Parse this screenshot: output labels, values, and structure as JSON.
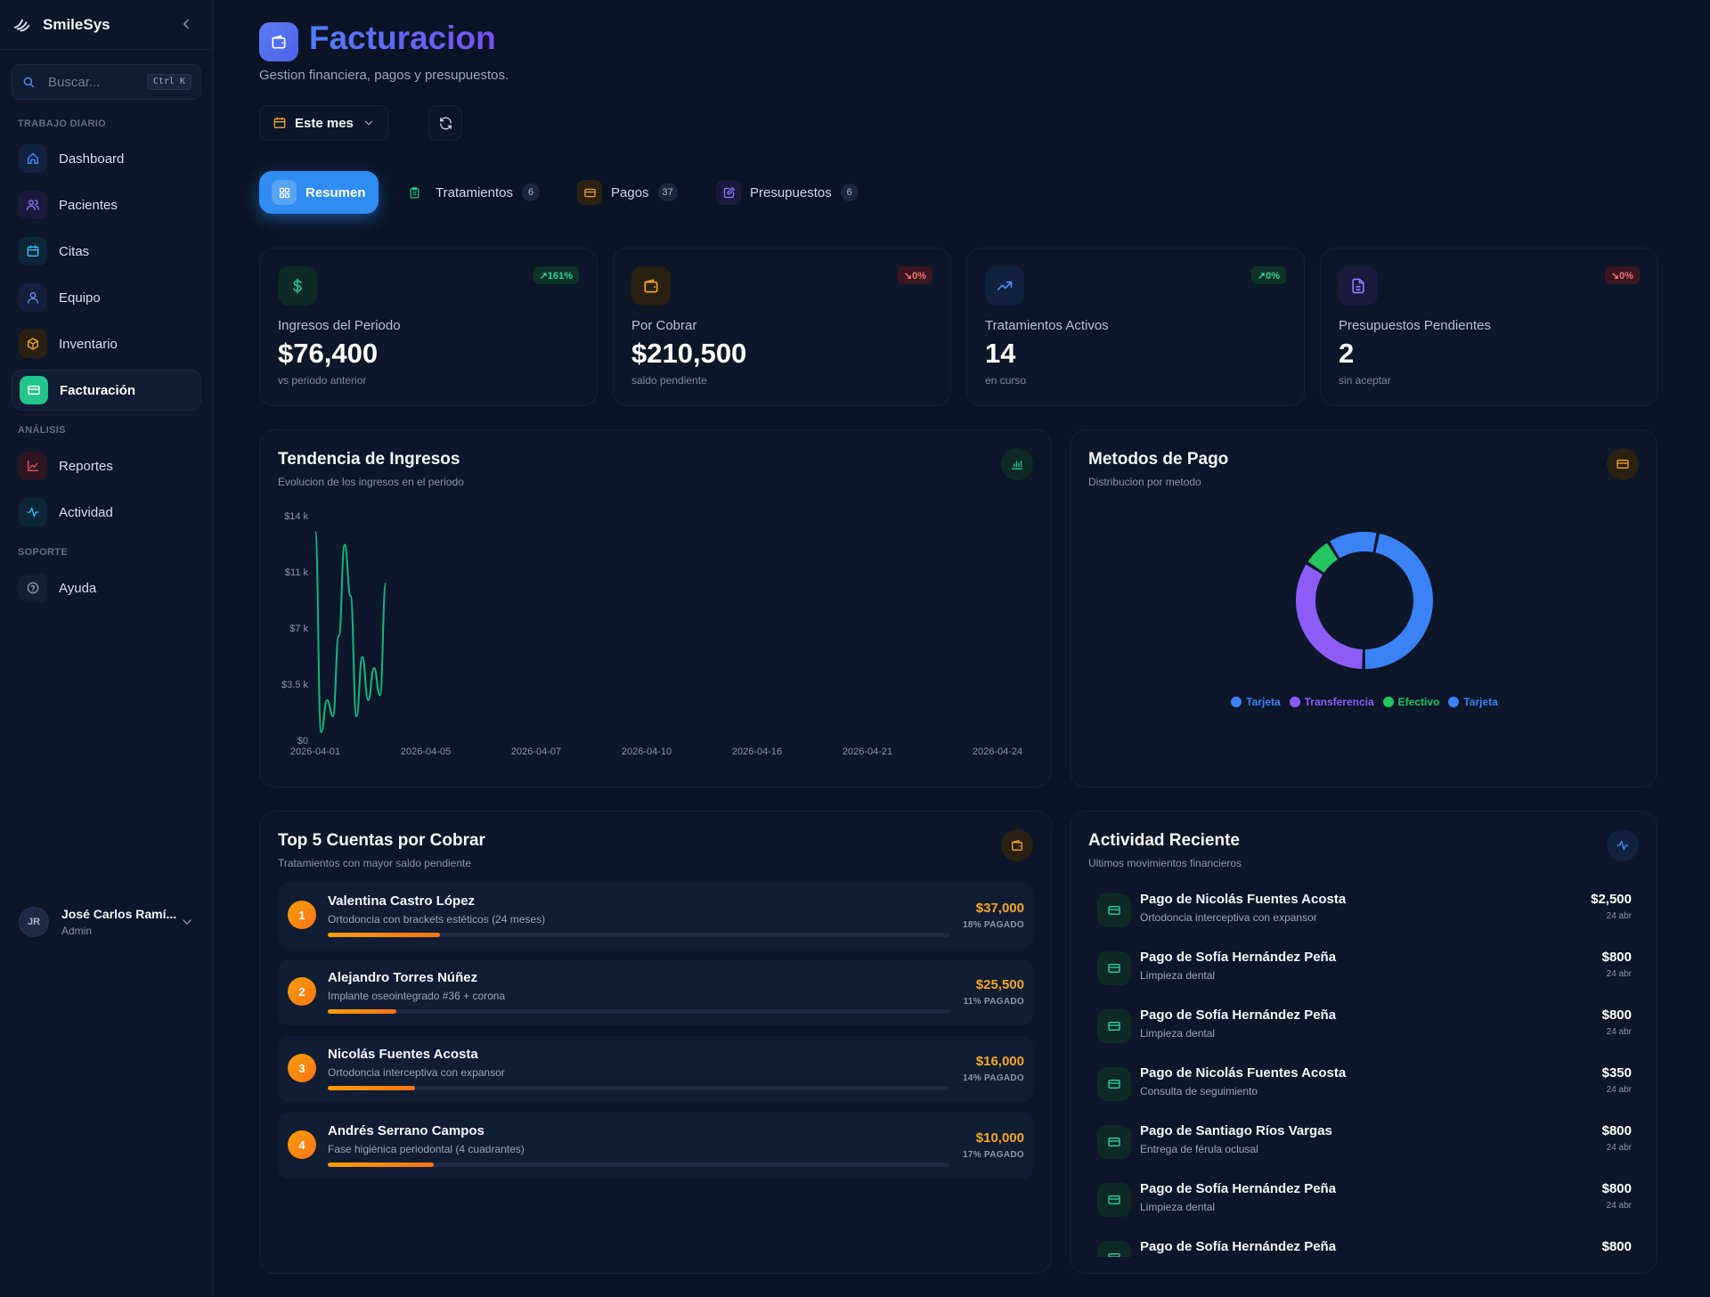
{
  "app": {
    "name": "SmileSys"
  },
  "search": {
    "placeholder": "Buscar...",
    "shortcut": "Ctrl K"
  },
  "sidebar": {
    "sections": [
      "TRABAJO DIARIO",
      "ANÁLISIS",
      "SOPORTE"
    ],
    "items": [
      {
        "label": "Dashboard",
        "icon": "home-icon",
        "color": "#4d8ef5"
      },
      {
        "label": "Pacientes",
        "icon": "users-icon",
        "color": "#8b7cf6"
      },
      {
        "label": "Citas",
        "icon": "calendar-icon",
        "color": "#38bdf8"
      },
      {
        "label": "Equipo",
        "icon": "team-icon",
        "color": "#6b8cf5"
      },
      {
        "label": "Inventario",
        "icon": "box-icon",
        "color": "#f0a230"
      },
      {
        "label": "Facturación",
        "icon": "card-icon",
        "color": "#22c58b"
      },
      {
        "label": "Reportes",
        "icon": "chart-line-icon",
        "color": "#f0506e"
      },
      {
        "label": "Actividad",
        "icon": "activity-icon",
        "color": "#38bdf8"
      },
      {
        "label": "Ayuda",
        "icon": "help-icon",
        "color": "#8a97ad"
      }
    ]
  },
  "user": {
    "initials": "JR",
    "name": "José Carlos Ramí...",
    "role": "Admin"
  },
  "header": {
    "title": "Facturacion",
    "subtitle": "Gestion financiera, pagos y presupuestos.",
    "period": "Este mes"
  },
  "tabs": [
    {
      "label": "Resumen",
      "count": null
    },
    {
      "label": "Tratamientos",
      "count": "6"
    },
    {
      "label": "Pagos",
      "count": "37"
    },
    {
      "label": "Presupuestos",
      "count": "6"
    }
  ],
  "stats": [
    {
      "label": "Ingresos del Periodo",
      "value": "$76,400",
      "note": "vs periodo anterior",
      "badge": "↗161%",
      "trend": "up"
    },
    {
      "label": "Por Cobrar",
      "value": "$210,500",
      "note": "saldo pendiente",
      "badge": "↘0%",
      "trend": "down"
    },
    {
      "label": "Tratamientos Activos",
      "value": "14",
      "note": "en curso",
      "badge": "↗0%",
      "trend": "up"
    },
    {
      "label": "Presupuestos Pendientes",
      "value": "2",
      "note": "sin aceptar",
      "badge": "↘0%",
      "trend": "down"
    }
  ],
  "income_panel": {
    "title": "Tendencia de Ingresos",
    "subtitle": "Evolucion de los ingresos en el periodo"
  },
  "methods_panel": {
    "title": "Metodos de Pago",
    "subtitle": "Distribucion por metodo"
  },
  "chart_data": [
    {
      "type": "line",
      "ytick_labels": [
        "$0",
        "$3.5 k",
        "$7 k",
        "$11 k",
        "$14 k"
      ],
      "ytick_values": [
        0,
        3500,
        7000,
        10500,
        14000
      ],
      "xtick_labels": [
        "2026-04-01",
        "2026-04-05",
        "2026-04-07",
        "2026-04-10",
        "2026-04-16",
        "2026-04-21",
        "2026-04-24"
      ],
      "ylim": [
        0,
        14000
      ],
      "color": "#10b981",
      "x": [
        "2026-04-01",
        "2026-04-02",
        "2026-04-03",
        "2026-04-04",
        "2026-04-05",
        "2026-04-06",
        "2026-04-07",
        "2026-04-08",
        "2026-04-09",
        "2026-04-10",
        "2026-04-11",
        "2026-04-12",
        "2026-04-13"
      ],
      "values": [
        13000,
        500,
        2500,
        1500,
        6500,
        12200,
        9000,
        1500,
        5200,
        2500,
        4500,
        2800,
        9800
      ],
      "grid": false
    },
    {
      "type": "pie",
      "donut": true,
      "labels": [
        "Tarjeta",
        "Transferencia",
        "Efectivo",
        "Tarjeta"
      ],
      "values": [
        47,
        34,
        7,
        12
      ],
      "colors": [
        "#3b82f6",
        "#8b5cf6",
        "#22c55e",
        "#3b82f6"
      ],
      "legend": "bottom"
    }
  ],
  "accounts_panel": {
    "title": "Top 5 Cuentas por Cobrar",
    "subtitle": "Tratamientos con mayor saldo pendiente",
    "items": [
      {
        "rank": "1",
        "name": "Valentina Castro López",
        "desc": "Ortodoncia con brackets estéticos (24 meses)",
        "amount": "$37,000",
        "pct_label": "18% PAGADO",
        "paid": 0.18
      },
      {
        "rank": "2",
        "name": "Alejandro Torres Núñez",
        "desc": "Implante oseointegrado #36 + corona",
        "amount": "$25,500",
        "pct_label": "11% PAGADO",
        "paid": 0.11
      },
      {
        "rank": "3",
        "name": "Nicolás Fuentes Acosta",
        "desc": "Ortodoncia interceptiva con expansor",
        "amount": "$16,000",
        "pct_label": "14% PAGADO",
        "paid": 0.14
      },
      {
        "rank": "4",
        "name": "Andrés Serrano Campos",
        "desc": "Fase higiénica periodontal (4 cuadrantes)",
        "amount": "$10,000",
        "pct_label": "17% PAGADO",
        "paid": 0.17
      }
    ]
  },
  "activity_panel": {
    "title": "Actividad Reciente",
    "subtitle": "Ultimos movimientos financieros",
    "items": [
      {
        "title": "Pago de Nicolás Fuentes Acosta",
        "desc": "Ortodoncia interceptiva con expansor",
        "amount": "$2,500",
        "date": "24 abr"
      },
      {
        "title": "Pago de Sofía Hernández Peña",
        "desc": "Limpieza dental",
        "amount": "$800",
        "date": "24 abr"
      },
      {
        "title": "Pago de Sofía Hernández Peña",
        "desc": "Limpieza dental",
        "amount": "$800",
        "date": "24 abr"
      },
      {
        "title": "Pago de Nicolás Fuentes Acosta",
        "desc": "Consulta de seguimiento",
        "amount": "$350",
        "date": "24 abr"
      },
      {
        "title": "Pago de Santiago Ríos Vargas",
        "desc": "Entrega de férula oclusal",
        "amount": "$800",
        "date": "24 abr"
      },
      {
        "title": "Pago de Sofía Hernández Peña",
        "desc": "Limpieza dental",
        "amount": "$800",
        "date": "24 abr"
      },
      {
        "title": "Pago de Sofía Hernández Peña",
        "desc": "",
        "amount": "$800",
        "date": ""
      }
    ]
  }
}
